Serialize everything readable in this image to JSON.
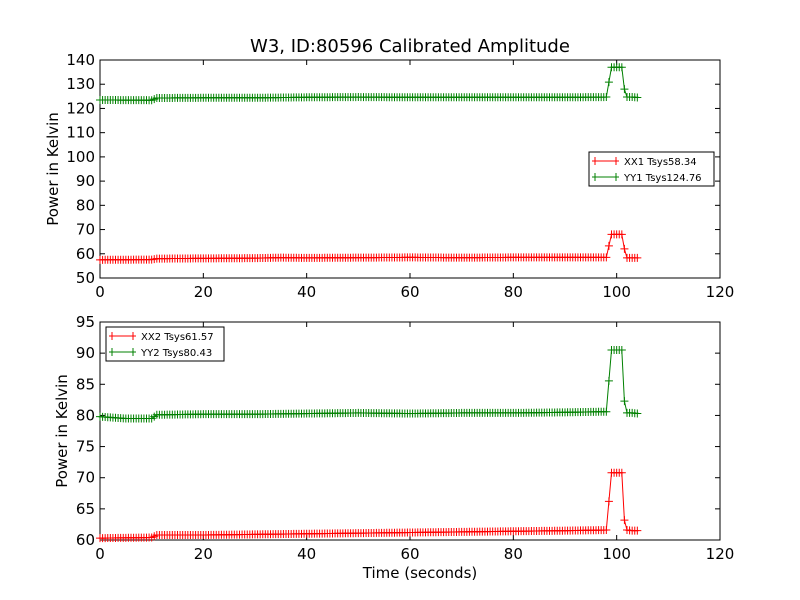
{
  "figure": {
    "title": "W3, ID:80596 Calibrated Amplitude"
  },
  "chart_data": [
    {
      "type": "line",
      "title": "W3, ID:80596 Calibrated Amplitude",
      "xlabel": "",
      "ylabel": "Power in Kelvin",
      "xlim": [
        0,
        120
      ],
      "ylim": [
        50,
        140
      ],
      "xticks": [
        0,
        20,
        40,
        60,
        80,
        100,
        120
      ],
      "yticks": [
        50,
        60,
        70,
        80,
        90,
        100,
        110,
        120,
        130,
        140
      ],
      "grid": false,
      "legend_position": "right",
      "series": [
        {
          "name": "XX1 Tsys58.34",
          "color": "#ff0000",
          "marker": "plus",
          "x": [
            0,
            10,
            11,
            20,
            30,
            35,
            40,
            50,
            60,
            70,
            80,
            90,
            98,
            99,
            100,
            101,
            101.5,
            102,
            103,
            104
          ],
          "y": [
            57.5,
            57.6,
            58.0,
            58.1,
            58.2,
            58.4,
            58.3,
            58.4,
            58.5,
            58.4,
            58.5,
            58.5,
            58.5,
            68.0,
            68.0,
            68.0,
            62.0,
            58.3,
            58.3,
            58.3
          ]
        },
        {
          "name": "YY1 Tsys124.76",
          "color": "#008000",
          "marker": "plus",
          "x": [
            0,
            10,
            11,
            20,
            30,
            40,
            50,
            60,
            70,
            80,
            90,
            98,
            99,
            100,
            101,
            101.5,
            102,
            103,
            104
          ],
          "y": [
            123.5,
            123.4,
            124.3,
            124.4,
            124.4,
            124.6,
            124.7,
            124.6,
            124.6,
            124.6,
            124.6,
            124.7,
            137.0,
            137.0,
            137.0,
            128.0,
            124.7,
            124.7,
            124.5
          ]
        }
      ]
    },
    {
      "type": "line",
      "title": "",
      "xlabel": "Time (seconds)",
      "ylabel": "Power in Kelvin",
      "xlim": [
        0,
        120
      ],
      "ylim": [
        60,
        95
      ],
      "xticks": [
        0,
        20,
        40,
        60,
        80,
        100,
        120
      ],
      "yticks": [
        60,
        65,
        70,
        75,
        80,
        85,
        90,
        95
      ],
      "grid": false,
      "legend_position": "top-left",
      "series": [
        {
          "name": "XX2 Tsys61.57",
          "color": "#ff0000",
          "marker": "plus",
          "x": [
            0,
            10,
            11,
            20,
            30,
            40,
            50,
            60,
            70,
            80,
            90,
            98,
            99,
            100,
            101,
            101.5,
            102,
            103,
            104
          ],
          "y": [
            60.3,
            60.4,
            60.8,
            60.8,
            60.9,
            61.0,
            61.1,
            61.2,
            61.3,
            61.4,
            61.5,
            61.6,
            70.8,
            70.8,
            70.8,
            63.2,
            61.6,
            61.5,
            61.5
          ]
        },
        {
          "name": "YY2 Tsys80.43",
          "color": "#008000",
          "marker": "plus",
          "x": [
            0,
            5,
            10,
            11,
            20,
            30,
            40,
            50,
            60,
            70,
            80,
            90,
            98,
            99,
            100,
            101,
            101.5,
            102,
            103,
            104
          ],
          "y": [
            79.8,
            79.5,
            79.5,
            80.1,
            80.2,
            80.2,
            80.3,
            80.4,
            80.3,
            80.4,
            80.4,
            80.5,
            80.6,
            90.5,
            90.5,
            90.5,
            82.3,
            80.4,
            80.4,
            80.3
          ]
        }
      ]
    }
  ]
}
